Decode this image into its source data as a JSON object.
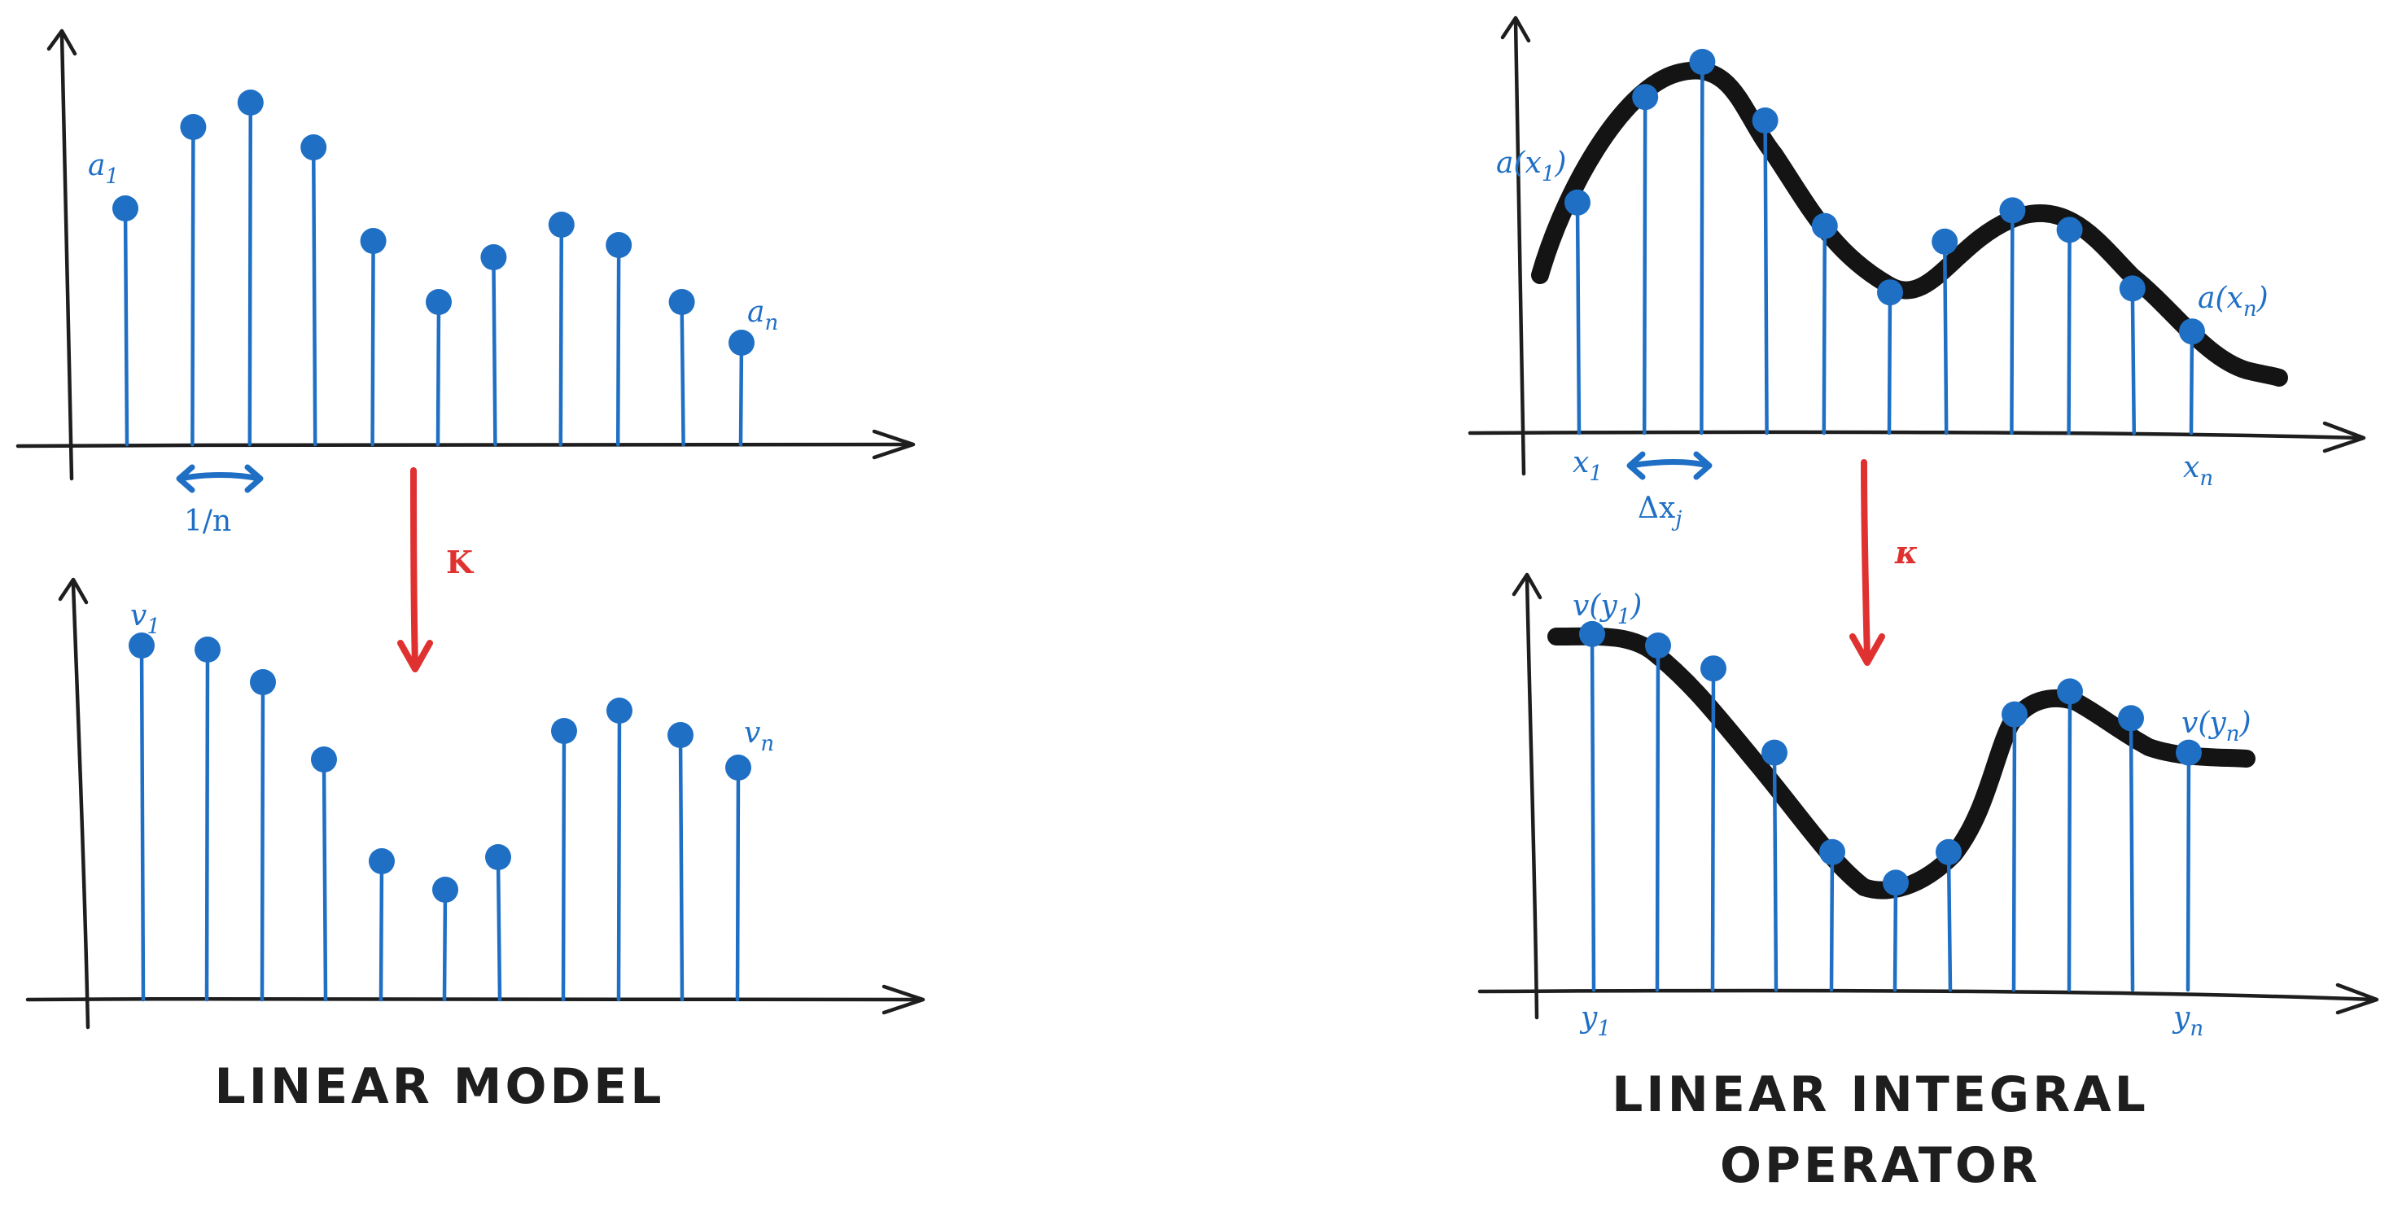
{
  "left": {
    "caption": "LINEAR MODEL",
    "operator": "K",
    "top": {
      "first_label": "a",
      "first_sub": "1",
      "last_label": "a",
      "last_sub": "n",
      "spacing_label": "1/n",
      "values": [
        0.58,
        0.78,
        0.84,
        0.73,
        0.5,
        0.35,
        0.46,
        0.54,
        0.49,
        0.35,
        0.25
      ]
    },
    "bottom": {
      "first_label": "v",
      "first_sub": "1",
      "last_label": "v",
      "last_sub": "n",
      "values": [
        0.87,
        0.86,
        0.78,
        0.59,
        0.34,
        0.27,
        0.35,
        0.66,
        0.71,
        0.65,
        0.57
      ]
    }
  },
  "right": {
    "caption_line1": "LINEAR INTEGRAL",
    "caption_line2": "OPERATOR",
    "operator": "κ",
    "top": {
      "first_label": "a(x",
      "first_sub": "1",
      "first_close": ")",
      "last_label": "a(x",
      "last_sub": "n",
      "last_close": ")",
      "x_first": "x",
      "x_first_sub": "1",
      "x_last": "x",
      "x_last_sub": "n",
      "spacing_label": "Δx",
      "spacing_sub": "j",
      "values": [
        0.59,
        0.86,
        0.95,
        0.8,
        0.53,
        0.36,
        0.49,
        0.57,
        0.52,
        0.37,
        0.26
      ]
    },
    "bottom": {
      "first_label": "v(y",
      "first_sub": "1",
      "first_close": ")",
      "last_label": "v(y",
      "last_sub": "n",
      "last_close": ")",
      "y_first": "y",
      "y_first_sub": "1",
      "y_last": "y",
      "y_last_sub": "n",
      "values": [
        0.93,
        0.9,
        0.84,
        0.62,
        0.36,
        0.28,
        0.36,
        0.72,
        0.78,
        0.71,
        0.62
      ]
    }
  }
}
